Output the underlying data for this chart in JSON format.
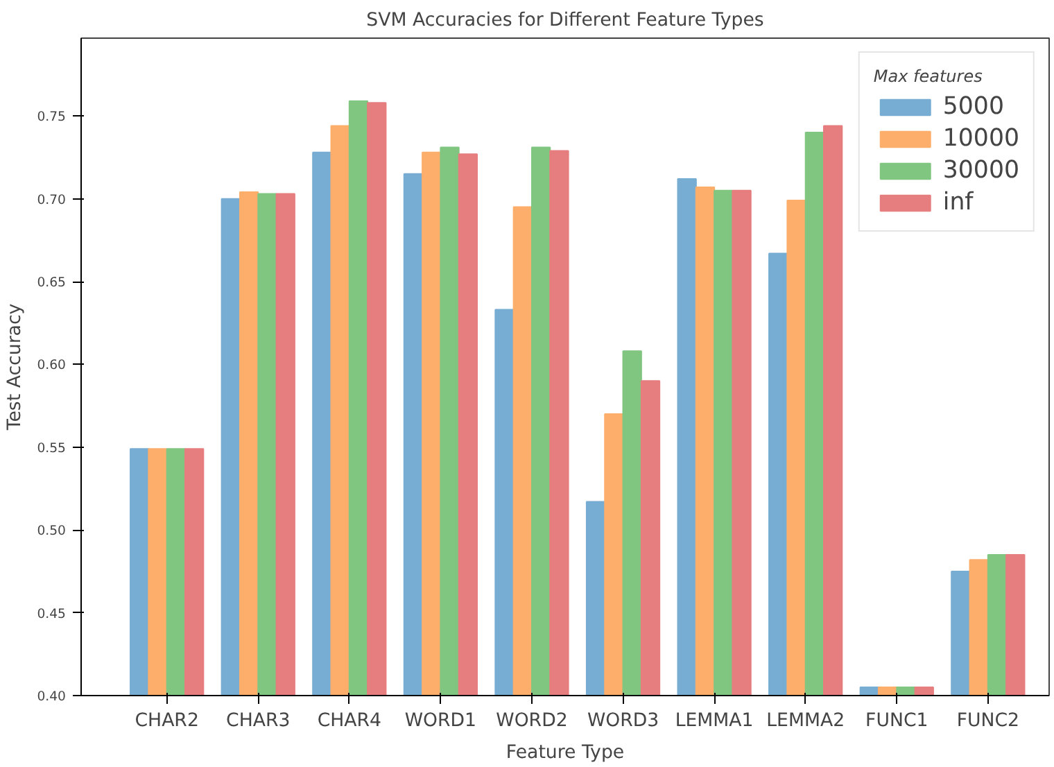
{
  "chart_data": {
    "type": "bar",
    "title": "SVM Accuracies for Different Feature Types",
    "xlabel": "Feature Type",
    "ylabel": "Test Accuracy",
    "legend_title": "Max features",
    "categories": [
      "CHAR2",
      "CHAR3",
      "CHAR4",
      "WORD1",
      "WORD2",
      "WORD3",
      "LEMMA1",
      "LEMMA2",
      "FUNC1",
      "FUNC2"
    ],
    "series": [
      {
        "name": "5000",
        "color": "#77acd3",
        "values": [
          0.549,
          0.7,
          0.728,
          0.715,
          0.633,
          0.517,
          0.712,
          0.667,
          0.405,
          0.475
        ]
      },
      {
        "name": "10000",
        "color": "#fdae6b",
        "values": [
          0.549,
          0.704,
          0.744,
          0.728,
          0.695,
          0.57,
          0.707,
          0.699,
          0.405,
          0.482
        ]
      },
      {
        "name": "30000",
        "color": "#80c680",
        "values": [
          0.549,
          0.703,
          0.759,
          0.731,
          0.731,
          0.608,
          0.705,
          0.74,
          0.405,
          0.485
        ]
      },
      {
        "name": "inf",
        "color": "#e67d7e",
        "values": [
          0.549,
          0.703,
          0.758,
          0.727,
          0.729,
          0.59,
          0.705,
          0.744,
          0.405,
          0.485
        ]
      }
    ],
    "ylim": [
      0.4,
      0.797
    ],
    "yticks": [
      {
        "value": 0.4,
        "label": "0.40"
      },
      {
        "value": 0.45,
        "label": "0.45"
      },
      {
        "value": 0.5,
        "label": "0.50"
      },
      {
        "value": 0.55,
        "label": "0.55"
      },
      {
        "value": 0.6,
        "label": "0.60"
      },
      {
        "value": 0.65,
        "label": "0.65"
      },
      {
        "value": 0.7,
        "label": "0.70"
      },
      {
        "value": 0.75,
        "label": "0.75"
      }
    ],
    "grid": false,
    "legend": "top right"
  }
}
